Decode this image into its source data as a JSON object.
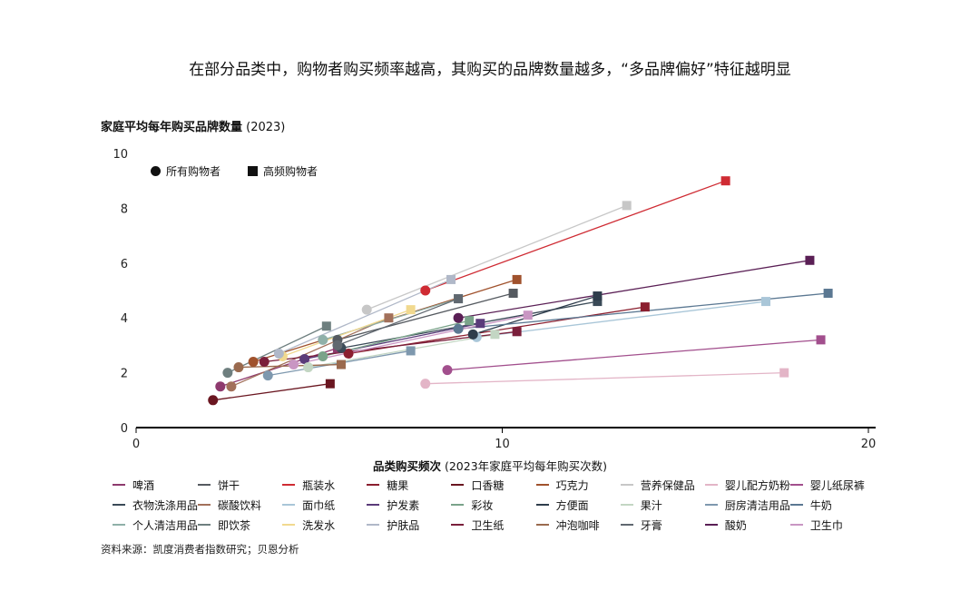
{
  "title": "在部分品类中，购物者购买频率越高，其购买的品牌数量越多，“多品牌偏好”特征越明显",
  "source": "资料来源：凯度消费者指数研究；贝恩分析",
  "mini_legend": {
    "all": "所有购物者",
    "high": "高频购物者"
  },
  "chart_data": {
    "type": "scatter",
    "ylabel_bold": "家庭平均每年购买品牌数量",
    "ylabel_suffix": " (2023)",
    "xlabel_bold": "品类购买频次",
    "xlabel_suffix": " (2023年家庭平均每年购买次数)",
    "xlim": [
      0,
      20
    ],
    "ylim": [
      0,
      10
    ],
    "xticks": [
      "0",
      "10",
      "20"
    ],
    "yticks": [
      "0",
      "2",
      "4",
      "6",
      "8",
      "10"
    ],
    "marker_legend": [
      "所有购物者",
      "高频购物者"
    ],
    "series": [
      {
        "name": "啤酒",
        "color": "#8e3a6e",
        "all": [
          2.3,
          1.5
        ],
        "high": [
          5.5,
          2.9
        ]
      },
      {
        "name": "饼干",
        "color": "#555a60",
        "all": [
          5.5,
          3.2
        ],
        "high": [
          10.3,
          4.9
        ]
      },
      {
        "name": "瓶装水",
        "color": "#cf2b33",
        "all": [
          7.9,
          5.0
        ],
        "high": [
          16.1,
          9.0
        ]
      },
      {
        "name": "糖果",
        "color": "#8b1f2f",
        "all": [
          5.8,
          2.7
        ],
        "high": [
          13.9,
          4.4
        ]
      },
      {
        "name": "口香糖",
        "color": "#6a1620",
        "all": [
          2.1,
          1.0
        ],
        "high": [
          5.3,
          1.6
        ]
      },
      {
        "name": "巧克力",
        "color": "#a0522d",
        "all": [
          3.2,
          2.4
        ],
        "high": [
          10.4,
          5.4
        ]
      },
      {
        "name": "营养保健品",
        "color": "#c7c7c7",
        "all": [
          6.3,
          4.3
        ],
        "high": [
          13.4,
          8.1
        ]
      },
      {
        "name": "婴儿配方奶粉",
        "color": "#e3b5c7",
        "all": [
          7.9,
          1.6
        ],
        "high": [
          17.7,
          2.0
        ]
      },
      {
        "name": "婴儿纸尿裤",
        "color": "#a24f8d",
        "all": [
          8.5,
          2.1
        ],
        "high": [
          18.7,
          3.2
        ]
      },
      {
        "name": "衣物洗涤用品",
        "color": "#3a4a57",
        "all": [
          5.6,
          2.9
        ],
        "high": [
          12.6,
          4.6
        ]
      },
      {
        "name": "碳酸饮料",
        "color": "#a2705a",
        "all": [
          2.6,
          1.5
        ],
        "high": [
          6.9,
          4.0
        ]
      },
      {
        "name": "面巾纸",
        "color": "#a9c6d8",
        "all": [
          9.3,
          3.3
        ],
        "high": [
          17.2,
          4.6
        ]
      },
      {
        "name": "护发素",
        "color": "#5a3b7a",
        "all": [
          4.6,
          2.5
        ],
        "high": [
          9.4,
          3.8
        ]
      },
      {
        "name": "彩妆",
        "color": "#7aa38a",
        "all": [
          5.1,
          2.6
        ],
        "high": [
          9.1,
          3.9
        ]
      },
      {
        "name": "方便面",
        "color": "#2f3d4c",
        "all": [
          9.2,
          3.4
        ],
        "high": [
          12.6,
          4.8
        ]
      },
      {
        "name": "果汁",
        "color": "#c3d6c3",
        "all": [
          4.7,
          2.2
        ],
        "high": [
          9.8,
          3.4
        ]
      },
      {
        "name": "厨房清洁用品",
        "color": "#7e98ae",
        "all": [
          3.6,
          1.9
        ],
        "high": [
          7.5,
          2.8
        ]
      },
      {
        "name": "牛奶",
        "color": "#5b7892",
        "all": [
          8.8,
          3.6
        ],
        "high": [
          18.9,
          4.9
        ]
      },
      {
        "name": "个人清洁用品",
        "color": "#8fb0a8",
        "all": [
          5.1,
          3.2
        ],
        "high": [
          8.8,
          4.7
        ]
      },
      {
        "name": "即饮茶",
        "color": "#6e7f7f",
        "all": [
          2.5,
          2.0
        ],
        "high": [
          5.2,
          3.7
        ]
      },
      {
        "name": "洗发水",
        "color": "#f1d98f",
        "all": [
          4.0,
          2.6
        ],
        "high": [
          7.5,
          4.3
        ]
      },
      {
        "name": "护肤品",
        "color": "#b0b8c8",
        "all": [
          3.9,
          2.7
        ],
        "high": [
          8.6,
          5.4
        ]
      },
      {
        "name": "卫生纸",
        "color": "#7a1f3b",
        "all": [
          3.5,
          2.4
        ],
        "high": [
          10.4,
          3.5
        ]
      },
      {
        "name": "冲泡咖啡",
        "color": "#9a6a4e",
        "all": [
          2.8,
          2.2
        ],
        "high": [
          5.6,
          2.3
        ]
      },
      {
        "name": "牙膏",
        "color": "#606870",
        "all": [
          5.5,
          3.0
        ],
        "high": [
          8.8,
          4.7
        ]
      },
      {
        "name": "酸奶",
        "color": "#5a1f55",
        "all": [
          8.8,
          4.0
        ],
        "high": [
          18.4,
          6.1
        ]
      },
      {
        "name": "卫生巾",
        "color": "#c996c3",
        "all": [
          4.3,
          2.3
        ],
        "high": [
          10.7,
          4.1
        ]
      }
    ]
  }
}
